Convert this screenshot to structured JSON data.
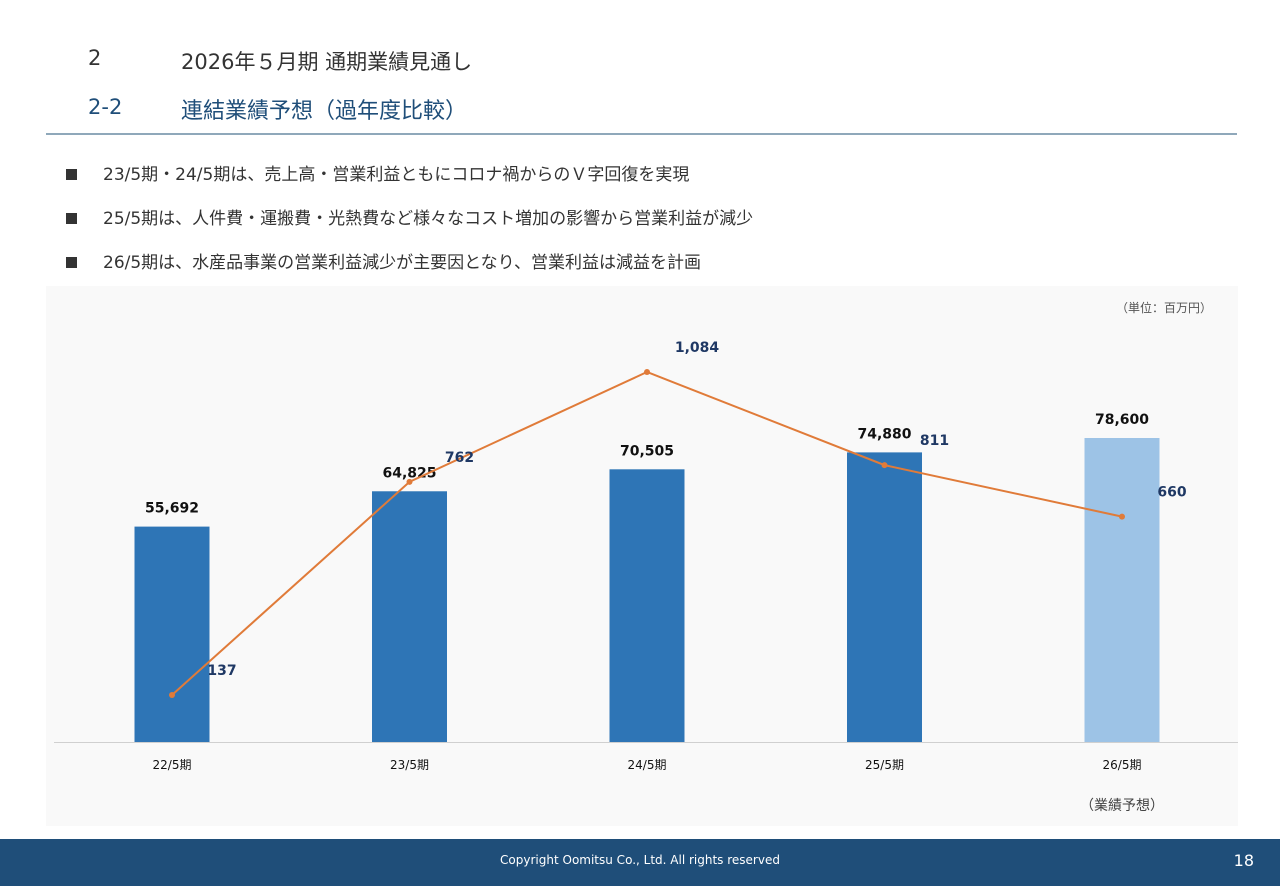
{
  "header": {
    "section_number": "2",
    "section_title": "2026年５月期 通期業績見通し",
    "subsection_number": "2-2",
    "subsection_title": "連結業績予想（過年度比較）"
  },
  "bullets": [
    "23/5期・24/5期は、売上高・営業利益ともにコロナ禍からのＶ字回復を実現",
    "25/5期は、人件費・運搬費・光熱費など様々なコスト増加の影響から営業利益が減少",
    "26/5期は、水産品事業の営業利益減少が主要因となり、営業利益は減益を計画"
  ],
  "chart_data": {
    "type": "bar",
    "unit": "（単位：百万円）",
    "categories": [
      "22/5期",
      "23/5期",
      "24/5期",
      "25/5期",
      "26/5期"
    ],
    "forecast_note": "（業績予想）",
    "series": [
      {
        "type": "bar",
        "values": [
          55692,
          64825,
          70505,
          74880,
          78600
        ],
        "labels": [
          "55,692",
          "64,825",
          "70,505",
          "74,880",
          "78,600"
        ],
        "colors": [
          "#2e75b6",
          "#2e75b6",
          "#2e75b6",
          "#2e75b6",
          "#9dc3e6"
        ]
      },
      {
        "type": "line",
        "values": [
          137,
          762,
          1084,
          811,
          660
        ],
        "labels": [
          "137",
          "762",
          "1,084",
          "811",
          "660"
        ],
        "color": "#e07b39"
      }
    ],
    "legend": "none",
    "grid": false
  },
  "footer": {
    "copyright": "Copyright Oomitsu Co., Ltd. All rights reserved",
    "page_number": "18"
  }
}
